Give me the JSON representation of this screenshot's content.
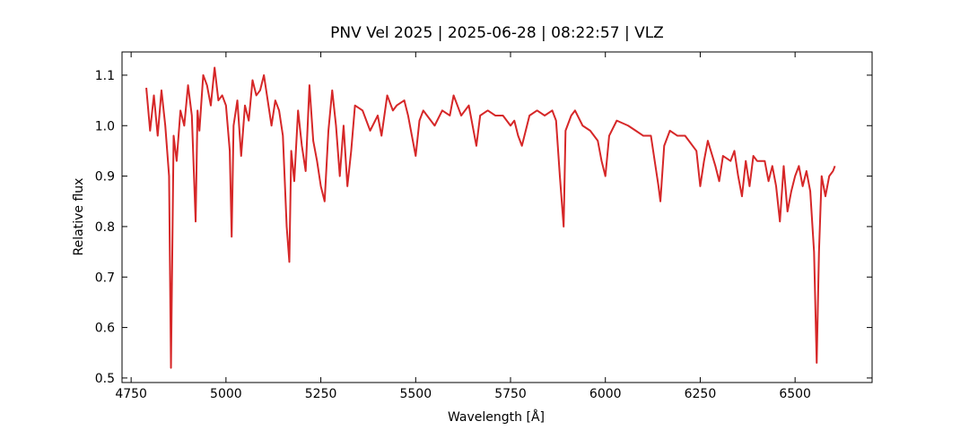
{
  "chart_data": {
    "type": "line",
    "title": "PNV Vel 2025 | 2025-06-28 | 08:22:57 | VLZ",
    "xlabel": "Wavelength [Å]",
    "ylabel": "Relative flux",
    "xlim": [
      4726,
      6703
    ],
    "ylim": [
      0.491,
      1.146
    ],
    "xticks": [
      4750,
      5000,
      5250,
      5500,
      5750,
      6000,
      6250,
      6500
    ],
    "yticks": [
      0.5,
      0.6,
      0.7,
      0.8,
      0.9,
      {
        "value": 1,
        "label": "1.0"
      },
      1.1
    ],
    "series": [
      {
        "color": "#d62728",
        "x": [
          4790,
          4800,
          4810,
          4820,
          4830,
          4840,
          4850,
          4855,
          4862,
          4870,
          4880,
          4890,
          4900,
          4910,
          4920,
          4925,
          4930,
          4940,
          4950,
          4960,
          4970,
          4980,
          4990,
          5000,
          5010,
          5015,
          5020,
          5030,
          5040,
          5050,
          5060,
          5070,
          5080,
          5090,
          5100,
          5110,
          5120,
          5130,
          5140,
          5150,
          5160,
          5167,
          5172,
          5180,
          5190,
          5200,
          5210,
          5220,
          5230,
          5240,
          5250,
          5260,
          5270,
          5280,
          5290,
          5300,
          5310,
          5320,
          5330,
          5340,
          5360,
          5380,
          5400,
          5410,
          5425,
          5440,
          5450,
          5470,
          5480,
          5490,
          5500,
          5510,
          5520,
          5530,
          5550,
          5570,
          5590,
          5600,
          5620,
          5640,
          5660,
          5670,
          5690,
          5710,
          5730,
          5750,
          5760,
          5770,
          5780,
          5800,
          5820,
          5840,
          5860,
          5870,
          5880,
          5890,
          5895,
          5910,
          5920,
          5940,
          5960,
          5980,
          5990,
          6000,
          6010,
          6030,
          6060,
          6080,
          6100,
          6120,
          6140,
          6145,
          6155,
          6170,
          6190,
          6210,
          6220,
          6240,
          6250,
          6260,
          6270,
          6290,
          6300,
          6310,
          6330,
          6340,
          6350,
          6360,
          6370,
          6380,
          6390,
          6400,
          6420,
          6430,
          6440,
          6450,
          6460,
          6470,
          6480,
          6490,
          6500,
          6510,
          6520,
          6530,
          6540,
          6550,
          6557,
          6563,
          6570,
          6580,
          6590,
          6600,
          6605
        ],
        "values": [
          1.075,
          0.99,
          1.06,
          0.98,
          1.07,
          1.0,
          0.9,
          0.52,
          0.98,
          0.93,
          1.03,
          1.0,
          1.08,
          1.02,
          0.81,
          1.03,
          0.99,
          1.1,
          1.08,
          1.04,
          1.115,
          1.05,
          1.06,
          1.04,
          0.95,
          0.78,
          1.0,
          1.05,
          0.94,
          1.04,
          1.01,
          1.09,
          1.06,
          1.07,
          1.1,
          1.05,
          1.0,
          1.05,
          1.03,
          0.98,
          0.8,
          0.73,
          0.95,
          0.89,
          1.03,
          0.96,
          0.91,
          1.08,
          0.97,
          0.93,
          0.88,
          0.85,
          0.99,
          1.07,
          1.0,
          0.9,
          1.0,
          0.88,
          0.95,
          1.04,
          1.03,
          0.99,
          1.02,
          0.98,
          1.06,
          1.03,
          1.04,
          1.05,
          1.02,
          0.98,
          0.94,
          1.01,
          1.03,
          1.02,
          1.0,
          1.03,
          1.02,
          1.06,
          1.02,
          1.04,
          0.96,
          1.02,
          1.03,
          1.02,
          1.02,
          1.0,
          1.01,
          0.98,
          0.96,
          1.02,
          1.03,
          1.02,
          1.03,
          1.01,
          0.9,
          0.8,
          0.99,
          1.02,
          1.03,
          1.0,
          0.99,
          0.97,
          0.93,
          0.9,
          0.98,
          1.01,
          1.0,
          0.99,
          0.98,
          0.98,
          0.88,
          0.85,
          0.96,
          0.99,
          0.98,
          0.98,
          0.97,
          0.95,
          0.88,
          0.93,
          0.97,
          0.92,
          0.89,
          0.94,
          0.93,
          0.95,
          0.9,
          0.86,
          0.93,
          0.88,
          0.94,
          0.93,
          0.93,
          0.89,
          0.92,
          0.88,
          0.81,
          0.92,
          0.83,
          0.87,
          0.9,
          0.92,
          0.88,
          0.91,
          0.87,
          0.75,
          0.53,
          0.75,
          0.9,
          0.86,
          0.9,
          0.91,
          0.92
        ]
      }
    ]
  }
}
